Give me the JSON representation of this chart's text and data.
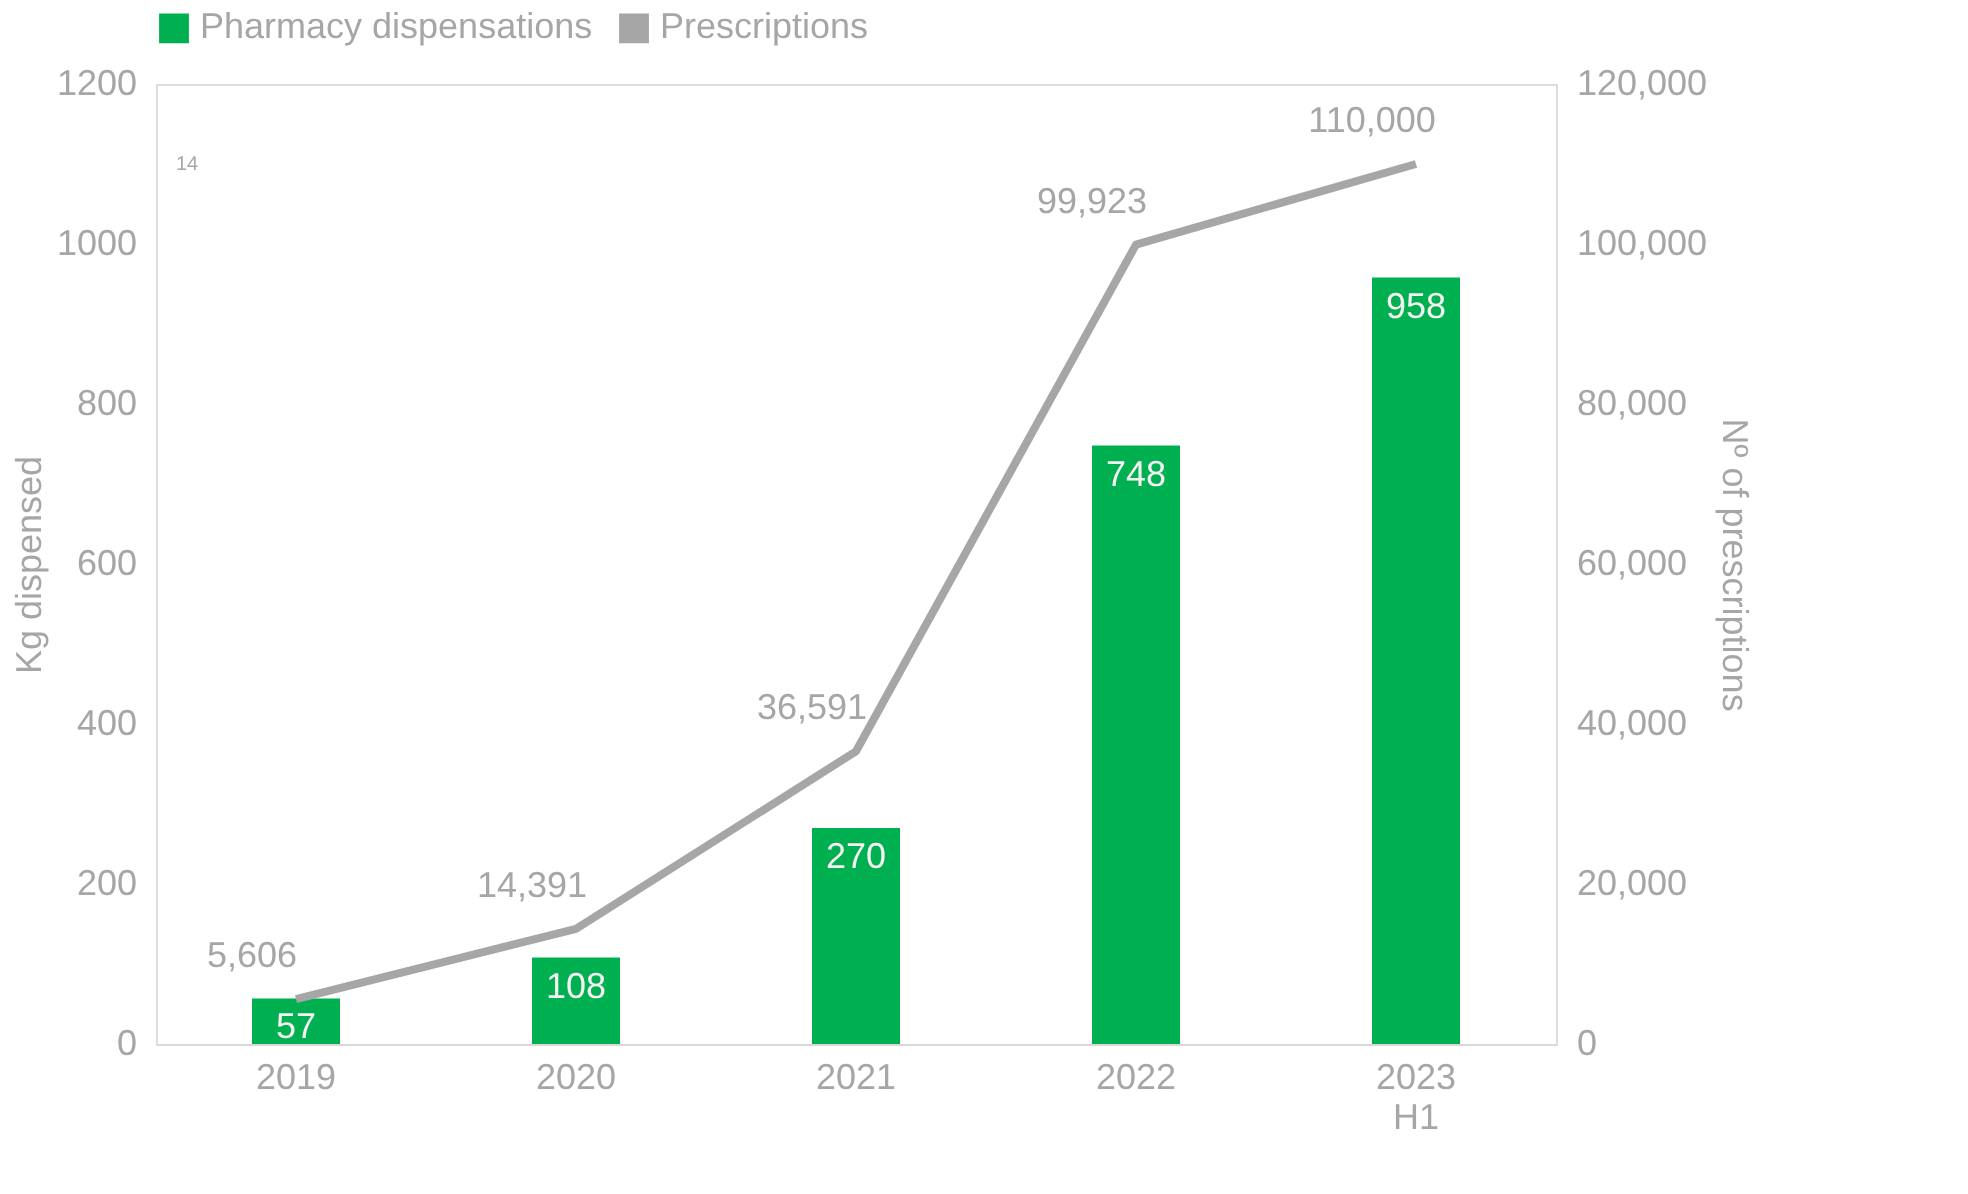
{
  "chart_data": {
    "type": "bar",
    "categories": [
      "2019",
      "2020",
      "2021",
      "2022",
      "2023 H1"
    ],
    "series": [
      {
        "name": "Pharmacy dispensations",
        "color": "#00b050",
        "values": [
          57,
          108,
          270,
          748,
          958
        ]
      },
      {
        "name": "Prescriptions",
        "type": "line",
        "axis": "y2",
        "color": "#a6a6a6",
        "values": [
          5606,
          14391,
          36591,
          99923,
          110000
        ],
        "value_labels": [
          "5,606",
          "14,391",
          "36,591",
          "99,923",
          "110,000"
        ],
        "line_style": "solid"
      }
    ],
    "ylabel": "Kg dispensed",
    "y2label": "Nº of prescriptions",
    "ylim": [
      0,
      1200
    ],
    "yticks": [
      0,
      200,
      400,
      600,
      800,
      1000,
      1200
    ],
    "y2lim": [
      0,
      120000
    ],
    "y2ticks": [
      0,
      {
        "value": 20000,
        "label": "20,000"
      },
      {
        "value": 40000,
        "label": "40,000"
      },
      {
        "value": 60000,
        "label": "60,000"
      },
      {
        "value": 80000,
        "label": "80,000"
      },
      {
        "value": 100000,
        "label": "100,000"
      },
      {
        "value": 120000,
        "label": "120,000"
      }
    ],
    "annotations": [
      "14"
    ],
    "data_labels": true,
    "legend": "top",
    "grid": false,
    "marker": "none"
  }
}
